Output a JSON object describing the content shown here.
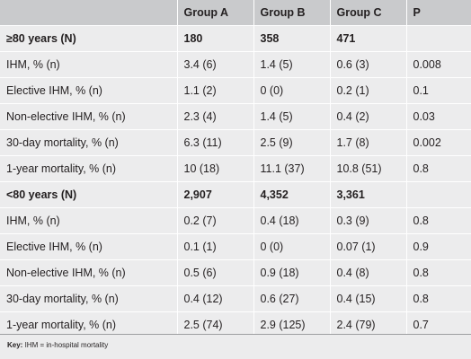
{
  "table": {
    "headers": [
      "",
      "Group A",
      "Group B",
      "Group C",
      "P"
    ],
    "rows": [
      {
        "type": "group",
        "cells": [
          "≥80 years (N)",
          "180",
          "358",
          "471",
          ""
        ]
      },
      {
        "type": "data",
        "cells": [
          "IHM, % (n)",
          "3.4 (6)",
          "1.4 (5)",
          "0.6 (3)",
          "0.008"
        ]
      },
      {
        "type": "data",
        "cells": [
          "Elective IHM, % (n)",
          "1.1 (2)",
          "0 (0)",
          "0.2 (1)",
          "0.1"
        ]
      },
      {
        "type": "data",
        "cells": [
          "Non-elective IHM, % (n)",
          "2.3 (4)",
          "1.4 (5)",
          "0.4 (2)",
          "0.03"
        ]
      },
      {
        "type": "data",
        "cells": [
          "30-day mortality, % (n)",
          "6.3 (11)",
          "2.5 (9)",
          "1.7 (8)",
          "0.002"
        ]
      },
      {
        "type": "data",
        "cells": [
          "1-year mortality, % (n)",
          "10 (18)",
          "11.1 (37)",
          "10.8 (51)",
          "0.8"
        ]
      },
      {
        "type": "group",
        "cells": [
          "<80 years (N)",
          "2,907",
          "4,352",
          "3,361",
          ""
        ]
      },
      {
        "type": "data",
        "cells": [
          "IHM, % (n)",
          "0.2 (7)",
          "0.4 (18)",
          "0.3 (9)",
          "0.8"
        ]
      },
      {
        "type": "data",
        "cells": [
          "Elective IHM, % (n)",
          "0.1 (1)",
          "0 (0)",
          "0.07 (1)",
          "0.9"
        ]
      },
      {
        "type": "data",
        "cells": [
          "Non-elective IHM, % (n)",
          "0.5 (6)",
          "0.9 (18)",
          "0.4 (8)",
          "0.8"
        ]
      },
      {
        "type": "data",
        "cells": [
          "30-day mortality, % (n)",
          "0.4 (12)",
          "0.6 (27)",
          "0.4 (15)",
          "0.8"
        ]
      },
      {
        "type": "data",
        "cells": [
          "1-year mortality, % (n)",
          "2.5 (74)",
          "2.9 (125)",
          "2.4 (79)",
          "0.7"
        ]
      }
    ]
  },
  "footer": {
    "key_label": "Key:",
    "key_text": "IHM = in-hospital mortality"
  },
  "colors": {
    "header_bg": "#c9cacc",
    "body_bg": "#ececed",
    "footer_rule": "#9d9ea0"
  }
}
